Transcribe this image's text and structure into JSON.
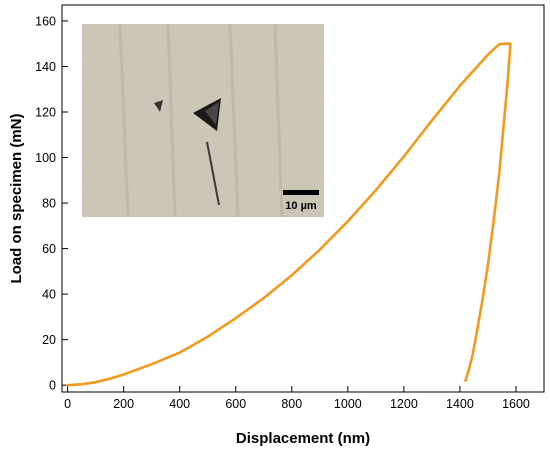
{
  "chart_data": {
    "type": "line",
    "title": "",
    "xlabel": "Displacement (nm)",
    "ylabel": "Load on specimen (mN)",
    "xlim": [
      -20,
      1700
    ],
    "ylim": [
      -3,
      167
    ],
    "xticks": [
      0,
      200,
      400,
      600,
      800,
      1000,
      1200,
      1400,
      1600
    ],
    "yticks": [
      0,
      20,
      40,
      60,
      80,
      100,
      120,
      140,
      160
    ],
    "grid": false,
    "legend": "none",
    "series": [
      {
        "color": "#f39a1e",
        "x": [
          0,
          50,
          100,
          150,
          200,
          300,
          400,
          500,
          600,
          700,
          800,
          900,
          1000,
          1100,
          1200,
          1300,
          1400,
          1500,
          1540,
          1560,
          1580,
          1570,
          1555,
          1540,
          1520,
          1500,
          1480,
          1460,
          1445,
          1430,
          1420
        ],
        "y": [
          0,
          0.4,
          1.3,
          2.8,
          4.7,
          9.2,
          14.3,
          21.3,
          29.4,
          38.3,
          48.3,
          59.5,
          72.0,
          85.7,
          100.5,
          116.3,
          131.5,
          145.2,
          149.8,
          150,
          150,
          133,
          113,
          93,
          72,
          53,
          37,
          23,
          13,
          6,
          2
        ]
      }
    ],
    "inset": {
      "kind": "micrograph",
      "scale_bar_label": "10 µm"
    }
  }
}
